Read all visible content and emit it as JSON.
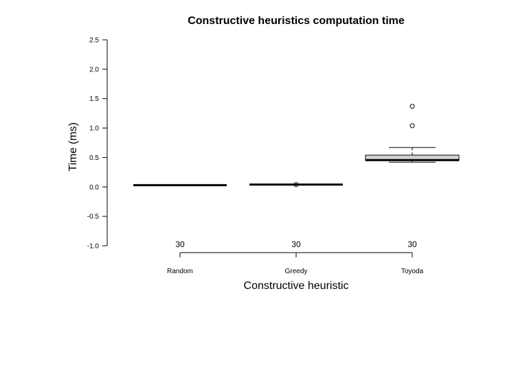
{
  "chart_data": {
    "type": "boxplot",
    "title": "Constructive heuristics computation time",
    "xlabel": "Constructive heuristic",
    "ylabel": "Time (ms)",
    "ylim": [
      -1.0,
      2.5
    ],
    "yticks": [
      -1.0,
      -0.5,
      0.0,
      0.5,
      1.0,
      1.5,
      2.0,
      2.5
    ],
    "ytick_labels": [
      "-1.0",
      "-0.5",
      "0.0",
      "0.5",
      "1.0",
      "1.5",
      "2.0",
      "2.5"
    ],
    "grid": false,
    "categories": [
      "Random",
      "Greedy",
      "Toyoda"
    ],
    "counts": [
      "30",
      "30",
      "30"
    ],
    "boxes": [
      {
        "category": "Random",
        "whisker_low": 0.03,
        "q1": 0.03,
        "median": 0.03,
        "q3": 0.03,
        "whisker_high": 0.03,
        "outliers": []
      },
      {
        "category": "Greedy",
        "whisker_low": 0.04,
        "q1": 0.04,
        "median": 0.04,
        "q3": 0.04,
        "whisker_high": 0.04,
        "outliers": [
          0.04
        ]
      },
      {
        "category": "Toyoda",
        "whisker_low": 0.42,
        "q1": 0.45,
        "median": 0.455,
        "q3": 0.54,
        "whisker_high": 0.67,
        "outliers": [
          1.04,
          1.37
        ]
      }
    ],
    "box_fill": "#d3d3d3",
    "line_color": "#000000"
  }
}
